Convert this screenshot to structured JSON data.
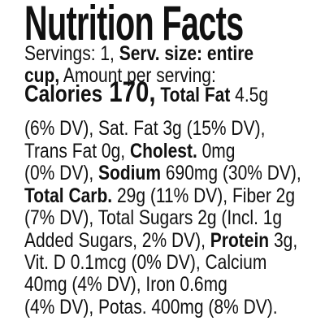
{
  "title": "Nutrition Facts",
  "lines": [
    [
      {
        "text": "Servings: 1, ",
        "bold": false
      },
      {
        "text": "Serv. size: entire",
        "bold": true
      }
    ],
    [
      {
        "text": "cup,",
        "bold": true
      },
      {
        "text": " Amount per serving:",
        "bold": false
      }
    ],
    [
      {
        "text": "Calories",
        "bold": true,
        "size": "large"
      },
      {
        "text": " 170,",
        "bold": true,
        "size": "xlarge"
      },
      {
        "text": " Total Fat",
        "bold": true
      },
      {
        "text": " 4.5g",
        "bold": false
      }
    ],
    [
      {
        "text": "(6% DV), Sat. Fat 3g (15% DV),",
        "bold": false
      }
    ],
    [
      {
        "text": "Trans Fat 0g, ",
        "bold": false
      },
      {
        "text": "Cholest.",
        "bold": true
      },
      {
        "text": " 0mg",
        "bold": false
      }
    ],
    [
      {
        "text": "(0% DV), ",
        "bold": false
      },
      {
        "text": "Sodium",
        "bold": true
      },
      {
        "text": " 690mg (30% DV),",
        "bold": false
      }
    ],
    [
      {
        "text": "Total Carb.",
        "bold": true
      },
      {
        "text": " 29g (11% DV), Fiber 2g",
        "bold": false
      }
    ],
    [
      {
        "text": "(7% DV), Total Sugars 2g (Incl. 1g",
        "bold": false
      }
    ],
    [
      {
        "text": "Added Sugars, 2% DV), ",
        "bold": false
      },
      {
        "text": "Protein",
        "bold": true
      },
      {
        "text": " 3g,",
        "bold": false
      }
    ],
    [
      {
        "text": "Vit. D 0.1mcg (0% DV), Calcium",
        "bold": false
      }
    ],
    [
      {
        "text": "40mg (4% DV), Iron 0.6mg",
        "bold": false
      }
    ],
    [
      {
        "text": "(4% DV), Potas. 400mg (8% DV).",
        "bold": false
      }
    ]
  ]
}
